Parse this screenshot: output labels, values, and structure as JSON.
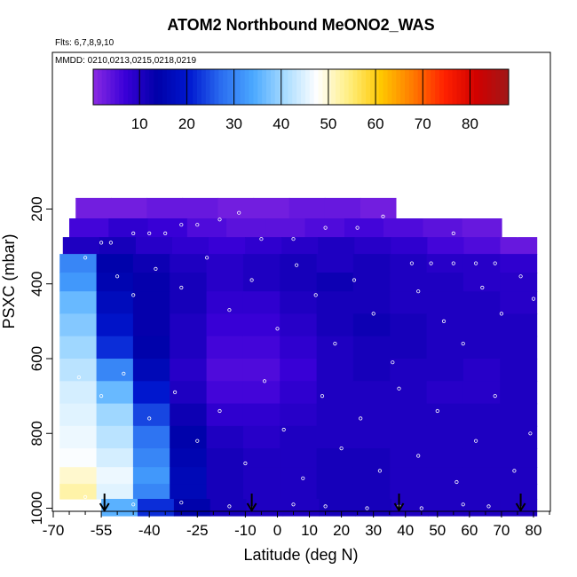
{
  "chart_data": {
    "type": "heatmap",
    "title": "ATOM2 Northbound MeONO2_WAS",
    "flights_label": "Flts: 6,7,8,9,10",
    "dates_label": "MMDD: 0210,0213,0215,0218,0219",
    "xlabel": "Latitude (deg N)",
    "ylabel": "PSXC (mbar)",
    "xlim": [
      -70,
      85
    ],
    "ylim": [
      1020,
      0
    ],
    "x_ticks": [
      -70,
      -55,
      -40,
      -25,
      -10,
      0,
      10,
      20,
      30,
      40,
      50,
      60,
      70,
      80
    ],
    "y_ticks": [
      200,
      400,
      600,
      800,
      1000
    ],
    "colorbar": {
      "range": [
        0,
        88
      ],
      "ticks": [
        10,
        20,
        30,
        40,
        50,
        60,
        70,
        80
      ],
      "colors": [
        "#8a2be2",
        "#3a00d8",
        "#0000a8",
        "#0018d0",
        "#2a6cf0",
        "#4aa8ff",
        "#a8dcff",
        "#ffffff",
        "#ffee80",
        "#ffc800",
        "#ff7a00",
        "#ff2000",
        "#d00000",
        "#a01818"
      ]
    },
    "value_scale": [
      0,
      5,
      10,
      15,
      20,
      25,
      30,
      35,
      40,
      50,
      60,
      70,
      80
    ],
    "pressure_rows": [
      {
        "p_top": 170,
        "p_bottom": 225,
        "x_min": -63,
        "x_max": 37,
        "values": [
          2,
          2,
          3,
          3,
          2,
          2,
          3,
          3,
          2
        ]
      },
      {
        "p_top": 225,
        "p_bottom": 275,
        "x_min": -65,
        "x_max": 70,
        "values": [
          6,
          8,
          7,
          5,
          4,
          4,
          5,
          6,
          5,
          4,
          3
        ]
      },
      {
        "p_top": 275,
        "p_bottom": 320,
        "x_min": -67,
        "x_max": 81,
        "values": [
          10,
          11,
          9,
          8,
          7,
          8,
          9,
          10,
          9,
          8,
          6,
          5,
          3
        ]
      },
      {
        "p_top": 320,
        "p_bottom": 370,
        "x_min": -68,
        "x_max": 81,
        "values": [
          30,
          14,
          12,
          10,
          9,
          10,
          11,
          10,
          11,
          10,
          9,
          9,
          8
        ]
      },
      {
        "p_top": 370,
        "p_bottom": 420,
        "x_min": -68,
        "x_max": 81,
        "values": [
          32,
          15,
          13,
          11,
          9,
          10,
          11,
          12,
          11,
          10,
          10,
          9,
          9
        ]
      },
      {
        "p_top": 420,
        "p_bottom": 480,
        "x_min": -68,
        "x_max": 81,
        "values": [
          36,
          17,
          13,
          11,
          8,
          8,
          10,
          11,
          11,
          10,
          10,
          10,
          9
        ]
      },
      {
        "p_top": 480,
        "p_bottom": 540,
        "x_min": -68,
        "x_max": 81,
        "values": [
          38,
          19,
          13,
          10,
          7,
          7,
          9,
          11,
          12,
          11,
          10,
          10,
          10
        ]
      },
      {
        "p_top": 540,
        "p_bottom": 600,
        "x_min": -68,
        "x_max": 81,
        "values": [
          40,
          22,
          14,
          10,
          6,
          6,
          8,
          10,
          11,
          11,
          10,
          10,
          10
        ]
      },
      {
        "p_top": 600,
        "p_bottom": 660,
        "x_min": -68,
        "x_max": 81,
        "values": [
          42,
          30,
          16,
          9,
          5,
          5,
          7,
          10,
          11,
          10,
          10,
          9,
          10
        ]
      },
      {
        "p_top": 660,
        "p_bottom": 720,
        "x_min": -68,
        "x_max": 81,
        "values": [
          44,
          36,
          20,
          10,
          6,
          6,
          8,
          10,
          10,
          10,
          9,
          9,
          10
        ]
      },
      {
        "p_top": 720,
        "p_bottom": 780,
        "x_min": -68,
        "x_max": 81,
        "values": [
          45,
          40,
          24,
          12,
          8,
          8,
          9,
          10,
          10,
          10,
          10,
          10,
          10
        ]
      },
      {
        "p_top": 780,
        "p_bottom": 840,
        "x_min": -68,
        "x_max": 81,
        "values": [
          46,
          42,
          28,
          14,
          10,
          9,
          10,
          10,
          10,
          10,
          10,
          10,
          10
        ]
      },
      {
        "p_top": 840,
        "p_bottom": 890,
        "x_min": -68,
        "x_max": 81,
        "values": [
          47,
          44,
          30,
          15,
          11,
          10,
          10,
          11,
          11,
          10,
          10,
          10,
          10
        ]
      },
      {
        "p_top": 890,
        "p_bottom": 935,
        "x_min": -68,
        "x_max": 81,
        "values": [
          50,
          46,
          32,
          16,
          11,
          10,
          10,
          11,
          11,
          10,
          10,
          10,
          10
        ]
      },
      {
        "p_top": 935,
        "p_bottom": 975,
        "x_min": -68,
        "x_max": 81,
        "values": [
          52,
          45,
          30,
          16,
          11,
          10,
          10,
          11,
          11,
          10,
          10,
          10,
          10
        ]
      },
      {
        "p_top": 975,
        "p_bottom": 1020,
        "x_min": -55,
        "x_max": 81,
        "values": [
          35,
          22,
          14,
          11,
          10,
          10,
          11,
          11,
          10,
          10,
          10,
          10
        ]
      }
    ],
    "sample_points": [
      [
        -55,
        290
      ],
      [
        -52,
        290
      ],
      [
        -45,
        265
      ],
      [
        -40,
        265
      ],
      [
        -35,
        265
      ],
      [
        -30,
        242
      ],
      [
        -25,
        242
      ],
      [
        -18,
        228
      ],
      [
        -12,
        210
      ],
      [
        -5,
        280
      ],
      [
        5,
        280
      ],
      [
        15,
        250
      ],
      [
        25,
        250
      ],
      [
        33,
        220
      ],
      [
        38,
        215
      ],
      [
        55,
        265
      ],
      [
        75,
        270
      ],
      [
        42,
        345
      ],
      [
        48,
        345
      ],
      [
        55,
        345
      ],
      [
        62,
        345
      ],
      [
        68,
        345
      ],
      [
        -60,
        330
      ],
      [
        -50,
        380
      ],
      [
        -45,
        430
      ],
      [
        -38,
        360
      ],
      [
        -30,
        410
      ],
      [
        -22,
        330
      ],
      [
        -15,
        470
      ],
      [
        -8,
        390
      ],
      [
        0,
        520
      ],
      [
        6,
        350
      ],
      [
        12,
        430
      ],
      [
        18,
        560
      ],
      [
        24,
        390
      ],
      [
        30,
        480
      ],
      [
        36,
        610
      ],
      [
        44,
        420
      ],
      [
        52,
        500
      ],
      [
        58,
        560
      ],
      [
        64,
        410
      ],
      [
        70,
        480
      ],
      [
        76,
        380
      ],
      [
        80,
        440
      ],
      [
        -62,
        650
      ],
      [
        -55,
        700
      ],
      [
        -48,
        640
      ],
      [
        -40,
        760
      ],
      [
        -32,
        690
      ],
      [
        -25,
        820
      ],
      [
        -18,
        740
      ],
      [
        -10,
        880
      ],
      [
        -4,
        660
      ],
      [
        2,
        790
      ],
      [
        8,
        920
      ],
      [
        14,
        700
      ],
      [
        20,
        840
      ],
      [
        26,
        760
      ],
      [
        32,
        900
      ],
      [
        38,
        680
      ],
      [
        44,
        860
      ],
      [
        50,
        740
      ],
      [
        56,
        930
      ],
      [
        62,
        820
      ],
      [
        68,
        700
      ],
      [
        74,
        900
      ],
      [
        79,
        800
      ],
      [
        -60,
        970
      ],
      [
        -45,
        990
      ],
      [
        -30,
        985
      ],
      [
        -15,
        995
      ],
      [
        -8,
        1000
      ],
      [
        5,
        990
      ],
      [
        15,
        995
      ],
      [
        28,
        1000
      ],
      [
        38,
        995
      ],
      [
        45,
        1000
      ],
      [
        58,
        990
      ],
      [
        66,
        995
      ],
      [
        76,
        1000
      ]
    ],
    "arrows_latitude": [
      -54,
      -8,
      38,
      76
    ]
  }
}
